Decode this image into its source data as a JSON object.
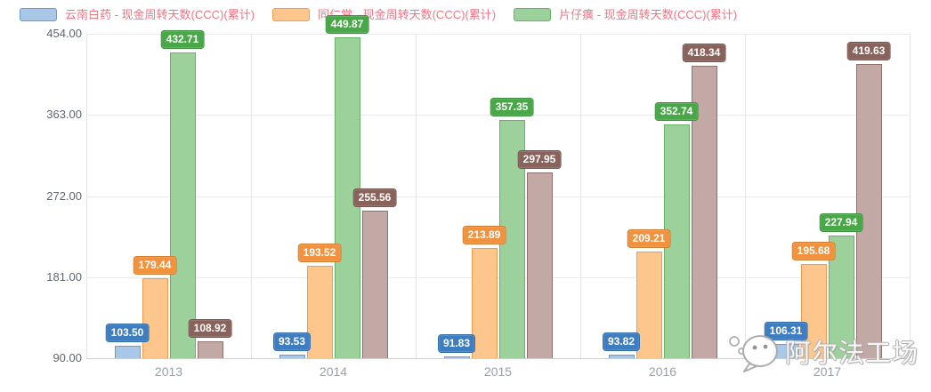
{
  "legend": {
    "text_color": "#ef7585",
    "items": [
      {
        "label": "云南白药 - 现金周转天数(CCC)(累计)"
      },
      {
        "label": "同仁堂 - 现金周转天数(CCC)(累计)"
      },
      {
        "label": "片仔癀 - 现金周转天数(CCC)(累计)"
      }
    ]
  },
  "chart_data": {
    "type": "bar",
    "title": "",
    "categories": [
      "2013",
      "2014",
      "2015",
      "2016",
      "2017"
    ],
    "series": [
      {
        "name": "云南白药 - 现金周转天数(CCC)(累计)",
        "values": [
          103.5,
          93.53,
          91.83,
          93.82,
          106.31
        ],
        "labels": [
          "103.50",
          "93.53",
          "91.83",
          "93.82",
          "106.31"
        ],
        "fill": "#a9c7e6",
        "stroke": "#6d9bce",
        "label_bg": "#3e7ec0",
        "in_legend": true
      },
      {
        "name": "同仁堂 - 现金周转天数(CCC)(累计)",
        "values": [
          179.44,
          193.52,
          213.89,
          209.21,
          195.68
        ],
        "labels": [
          "179.44",
          "193.52",
          "213.89",
          "209.21",
          "195.68"
        ],
        "fill": "#fcc68c",
        "stroke": "#f09b50",
        "label_bg": "#f0923e",
        "in_legend": true
      },
      {
        "name": "片仔癀 - 现金周转天数(CCC)(累计)",
        "values": [
          432.71,
          449.87,
          357.35,
          352.74,
          227.94
        ],
        "labels": [
          "432.71",
          "449.87",
          "357.35",
          "352.74",
          "227.94"
        ],
        "fill": "#9cd19c",
        "stroke": "#66b366",
        "label_bg": "#48a848",
        "in_legend": true
      },
      {
        "name": "",
        "values": [
          108.92,
          255.56,
          297.95,
          418.34,
          419.63
        ],
        "labels": [
          "108.92",
          "255.56",
          "297.95",
          "418.34",
          "419.63"
        ],
        "fill": "#c2a9a5",
        "stroke": "#8f706a",
        "label_bg": "#8a625c",
        "in_legend": false
      }
    ],
    "yticks": [
      {
        "value": 90,
        "label": "90.00"
      },
      {
        "value": 181,
        "label": "181.00"
      },
      {
        "value": 272,
        "label": "272.00"
      },
      {
        "value": 363,
        "label": "363.00"
      },
      {
        "value": 454,
        "label": "454.00"
      }
    ],
    "ylim": [
      90,
      454
    ],
    "grid": true,
    "legend_position": "top-left"
  },
  "watermark": {
    "text": "阿尔法工场"
  }
}
